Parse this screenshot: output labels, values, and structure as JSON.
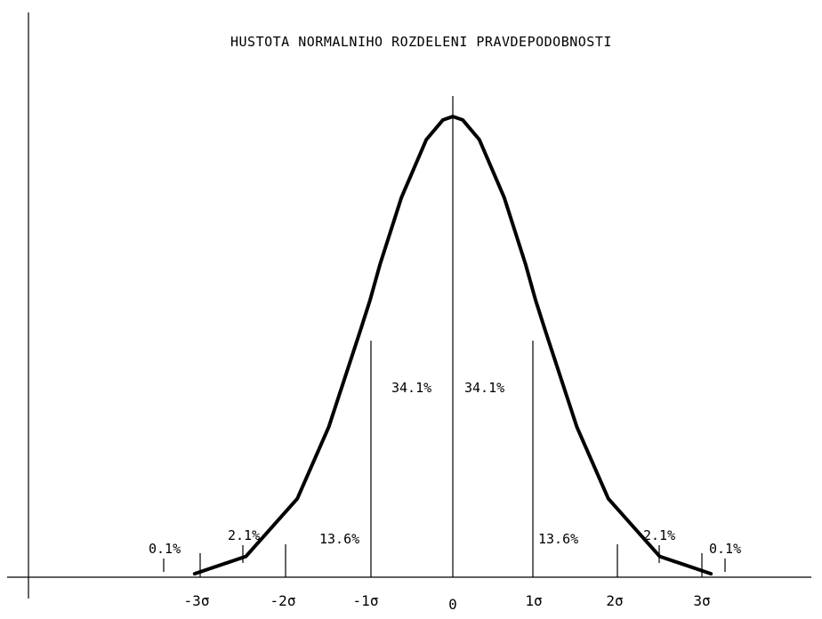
{
  "title": "HUSTOTA NORMALNIHO ROZDELENI PRAVDEPODOBNOSTI",
  "x_axis_ticks": [
    "-3σ",
    "-2σ",
    "-1σ",
    "0",
    "1σ",
    "2σ",
    "3σ"
  ],
  "region_labels": {
    "left_0_1": "0.1%",
    "left_2_1": "2.1%",
    "left_13_6": "13.6%",
    "left_34_1": "34.1%",
    "right_34_1": "34.1%",
    "right_13_6": "13.6%",
    "right_2_1": "2.1%",
    "right_0_1": "0.1%"
  },
  "chart_data": {
    "type": "line",
    "title": "HUSTOTA NORMALNIHO ROZDELENI PRAVDEPODOBNOSTI",
    "xlabel": "",
    "ylabel": "",
    "x_ticks": [
      "-3σ",
      "-2σ",
      "-1σ",
      "0",
      "1σ",
      "2σ",
      "3σ"
    ],
    "series": [
      {
        "x": [
          -3.12,
          -2.5,
          -1.88,
          -1.5,
          -1.12,
          -1.0,
          -0.88,
          -0.62,
          -0.32,
          -0.12,
          0,
          0.12,
          0.32,
          0.62,
          0.88,
          1.0,
          1.12,
          1.5,
          1.88,
          2.5,
          3.12
        ],
        "y": [
          0.003,
          0.018,
          0.068,
          0.13,
          0.213,
          0.24,
          0.271,
          0.329,
          0.379,
          0.396,
          0.399,
          0.396,
          0.379,
          0.329,
          0.271,
          0.24,
          0.213,
          0.13,
          0.068,
          0.018,
          0.003
        ]
      }
    ],
    "annotations": [
      "0.1%",
      "2.1%",
      "13.6%",
      "34.1%",
      "34.1%",
      "13.6%",
      "2.1%",
      "0.1%"
    ],
    "grid": false
  }
}
